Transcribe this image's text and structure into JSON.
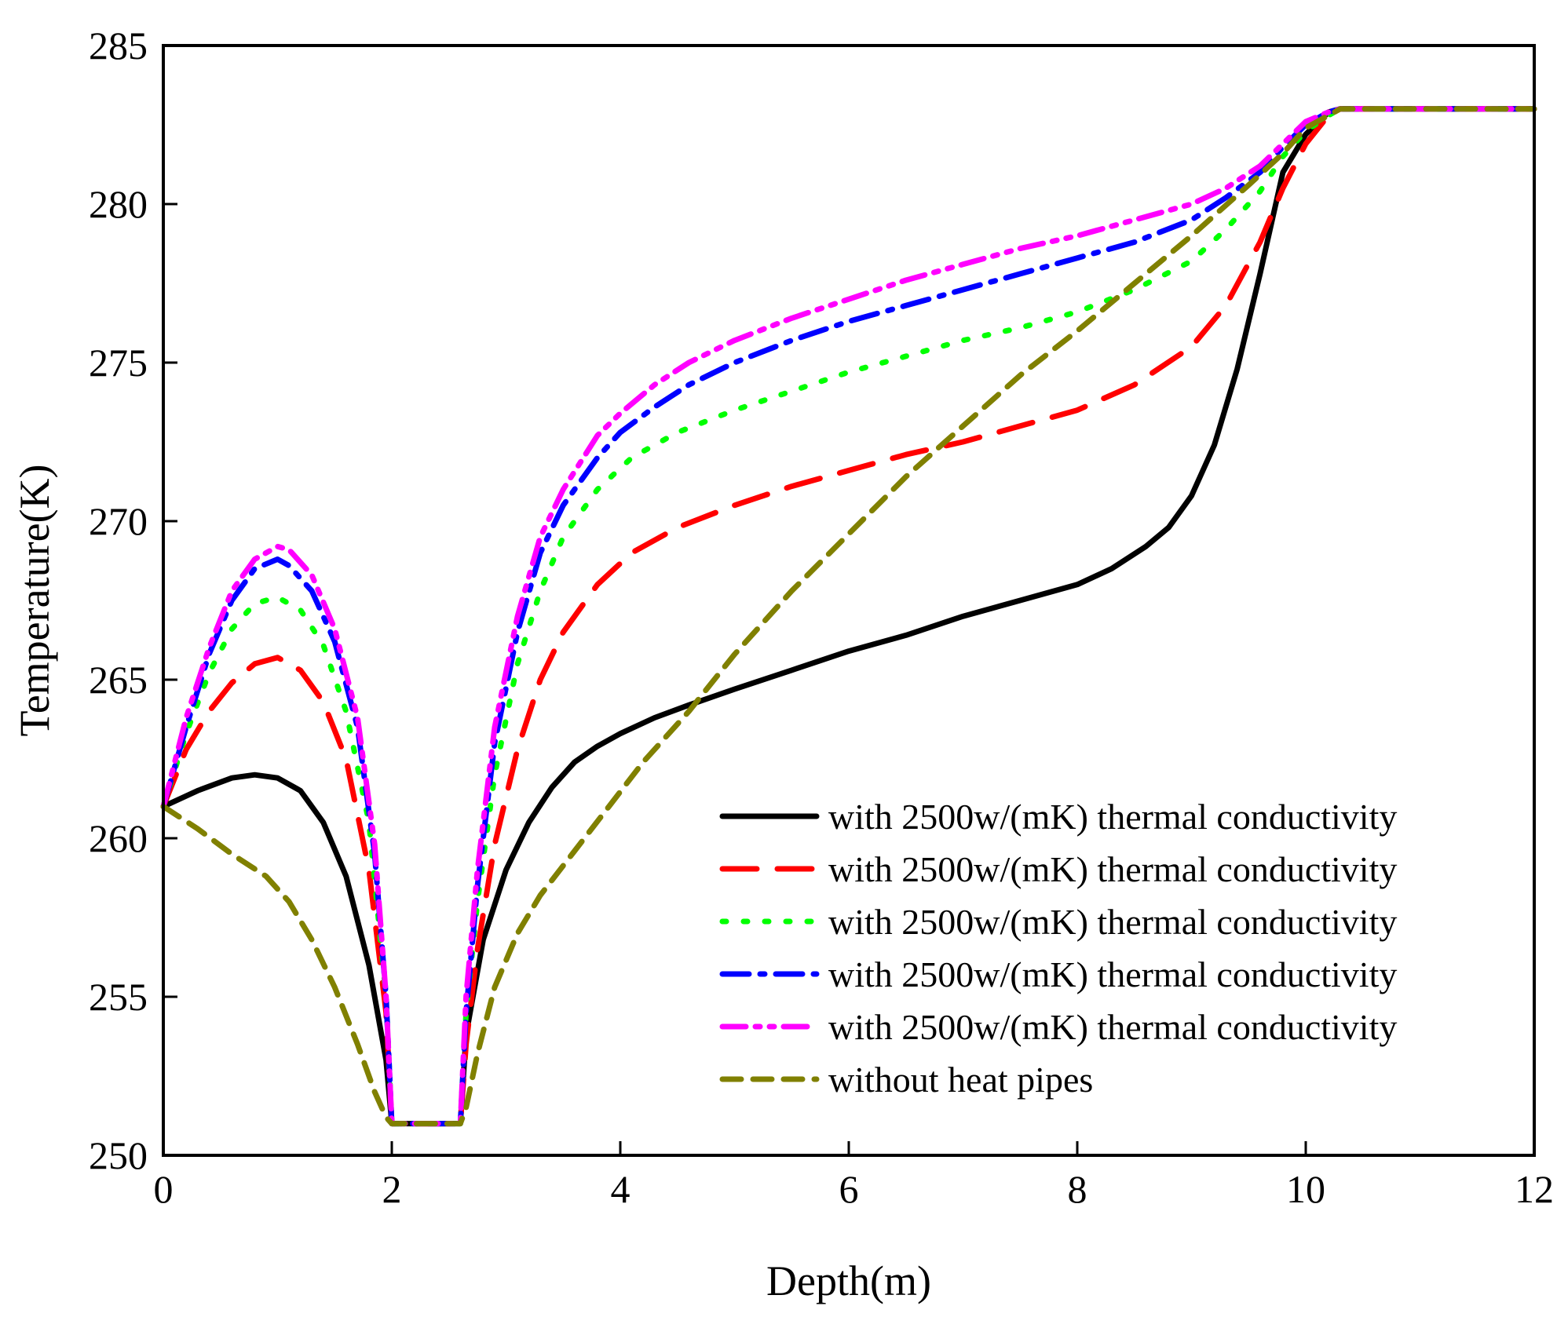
{
  "chart_data": {
    "type": "line",
    "title": "",
    "xlabel": "Depth(m)",
    "ylabel": "Temperature(K)",
    "xlim": [
      0,
      12
    ],
    "ylim": [
      250,
      285
    ],
    "xticks": [
      0,
      2,
      4,
      6,
      8,
      10,
      12
    ],
    "yticks": [
      250,
      255,
      260,
      265,
      270,
      275,
      280,
      285
    ],
    "grid": false,
    "legend_position": "bottom-right",
    "series": [
      {
        "name": "with 2500w/(mK) thermal conductivity",
        "color": "#000000",
        "dash": "solid",
        "x": [
          0,
          0.3,
          0.6,
          0.8,
          1.0,
          1.2,
          1.4,
          1.6,
          1.8,
          1.95,
          2.0,
          2.6,
          2.65,
          2.8,
          3.0,
          3.2,
          3.4,
          3.6,
          3.8,
          4.0,
          4.3,
          4.6,
          5.0,
          5.5,
          6.0,
          6.5,
          7.0,
          7.5,
          8.0,
          8.3,
          8.6,
          8.8,
          9.0,
          9.2,
          9.4,
          9.6,
          9.8,
          10.0,
          10.2,
          10.3,
          12.0
        ],
        "y": [
          261.0,
          261.5,
          261.9,
          262.0,
          261.9,
          261.5,
          260.5,
          258.8,
          256.0,
          253.0,
          251.0,
          251.0,
          253.8,
          256.8,
          259.0,
          260.5,
          261.6,
          262.4,
          262.9,
          263.3,
          263.8,
          264.2,
          264.7,
          265.3,
          265.9,
          266.4,
          267.0,
          267.5,
          268.0,
          268.5,
          269.2,
          269.8,
          270.8,
          272.4,
          274.8,
          277.8,
          281.0,
          282.2,
          282.9,
          283.0,
          283.0
        ]
      },
      {
        "name": "with 2500w/(mK) thermal conductivity",
        "color": "#ff0000",
        "dash": "long-dash",
        "x": [
          0,
          0.2,
          0.4,
          0.6,
          0.8,
          1.0,
          1.2,
          1.4,
          1.6,
          1.8,
          1.95,
          2.0,
          2.6,
          2.65,
          2.75,
          2.9,
          3.1,
          3.3,
          3.5,
          3.8,
          4.1,
          4.5,
          5.0,
          5.5,
          6.0,
          6.5,
          7.0,
          7.5,
          8.0,
          8.5,
          9.0,
          9.3,
          9.6,
          9.8,
          10.0,
          10.2,
          10.3,
          12.0
        ],
        "y": [
          261.0,
          262.8,
          264.0,
          264.9,
          265.5,
          265.7,
          265.3,
          264.3,
          262.5,
          259.0,
          254.5,
          251.0,
          251.0,
          253.5,
          256.5,
          259.8,
          262.8,
          265.0,
          266.5,
          268.0,
          269.0,
          269.8,
          270.5,
          271.1,
          271.6,
          272.1,
          272.5,
          273.0,
          273.5,
          274.3,
          275.5,
          276.8,
          278.8,
          280.5,
          281.9,
          282.8,
          283.0,
          283.0
        ]
      },
      {
        "name": "with 2500w/(mK) thermal conductivity",
        "color": "#00ff00",
        "dash": "dotted",
        "x": [
          0,
          0.2,
          0.4,
          0.6,
          0.8,
          1.0,
          1.2,
          1.4,
          1.6,
          1.8,
          1.95,
          2.0,
          2.6,
          2.65,
          2.75,
          2.9,
          3.1,
          3.3,
          3.5,
          3.8,
          4.1,
          4.5,
          5.0,
          5.5,
          6.0,
          6.5,
          7.0,
          7.5,
          8.0,
          8.5,
          9.0,
          9.3,
          9.6,
          9.8,
          10.0,
          10.2,
          10.3,
          12.0
        ],
        "y": [
          261.0,
          263.3,
          265.2,
          266.6,
          267.4,
          267.6,
          267.2,
          266.1,
          264.0,
          260.5,
          255.0,
          251.0,
          251.0,
          254.5,
          258.0,
          262.0,
          265.5,
          267.8,
          269.5,
          271.0,
          272.0,
          272.8,
          273.5,
          274.1,
          274.7,
          275.2,
          275.7,
          276.1,
          276.6,
          277.3,
          278.2,
          279.2,
          280.4,
          281.5,
          282.3,
          282.8,
          283.0,
          283.0
        ]
      },
      {
        "name": "with 2500w/(mK) thermal conductivity",
        "color": "#0000ff",
        "dash": "dash-dot",
        "x": [
          0,
          0.2,
          0.4,
          0.6,
          0.8,
          1.0,
          1.1,
          1.3,
          1.5,
          1.7,
          1.85,
          1.95,
          2.0,
          2.6,
          2.65,
          2.75,
          2.9,
          3.1,
          3.3,
          3.5,
          3.8,
          4.0,
          4.3,
          4.6,
          5.0,
          5.5,
          6.0,
          6.5,
          7.0,
          7.5,
          8.0,
          8.5,
          9.0,
          9.3,
          9.6,
          9.8,
          10.0,
          10.2,
          10.3,
          12.0
        ],
        "y": [
          261.0,
          263.5,
          265.8,
          267.5,
          268.5,
          268.8,
          268.6,
          267.8,
          266.2,
          263.5,
          259.5,
          255.0,
          251.0,
          251.0,
          254.5,
          258.5,
          263.0,
          266.5,
          269.0,
          270.5,
          272.0,
          272.8,
          273.6,
          274.3,
          275.0,
          275.7,
          276.3,
          276.8,
          277.3,
          277.8,
          278.3,
          278.8,
          279.5,
          280.2,
          281.0,
          281.8,
          282.5,
          282.9,
          283.0,
          283.0
        ]
      },
      {
        "name": "with 2500w/(mK) thermal conductivity",
        "color": "#ff00ff",
        "dash": "dash-dot-dot",
        "x": [
          0,
          0.2,
          0.4,
          0.6,
          0.8,
          1.0,
          1.1,
          1.3,
          1.5,
          1.7,
          1.85,
          1.95,
          2.0,
          2.6,
          2.65,
          2.75,
          2.9,
          3.1,
          3.3,
          3.5,
          3.8,
          4.0,
          4.3,
          4.6,
          5.0,
          5.5,
          6.0,
          6.5,
          7.0,
          7.5,
          8.0,
          8.5,
          9.0,
          9.3,
          9.6,
          9.8,
          10.0,
          10.2,
          10.3,
          12.0
        ],
        "y": [
          261.0,
          263.8,
          266.0,
          267.8,
          268.8,
          269.2,
          269.1,
          268.3,
          266.6,
          263.8,
          259.8,
          255.0,
          251.0,
          251.0,
          255.0,
          259.0,
          263.5,
          267.0,
          269.5,
          271.0,
          272.7,
          273.4,
          274.3,
          275.0,
          275.7,
          276.4,
          277.0,
          277.6,
          278.1,
          278.6,
          279.0,
          279.5,
          280.0,
          280.5,
          281.2,
          281.9,
          282.6,
          282.9,
          283.0,
          283.0
        ]
      },
      {
        "name": "without heat pipes",
        "color": "#808000",
        "dash": "short-dash",
        "x": [
          0,
          0.3,
          0.6,
          0.9,
          1.1,
          1.3,
          1.5,
          1.7,
          1.85,
          1.95,
          2.0,
          2.6,
          2.65,
          2.75,
          2.9,
          3.1,
          3.3,
          3.6,
          3.9,
          4.2,
          4.6,
          5.0,
          5.5,
          6.0,
          6.5,
          7.0,
          7.5,
          8.0,
          8.5,
          9.0,
          9.5,
          9.8,
          10.0,
          10.2,
          10.3,
          12.0
        ],
        "y": [
          261.0,
          260.3,
          259.5,
          258.8,
          258.0,
          256.8,
          255.3,
          253.5,
          252.0,
          251.2,
          251.0,
          251.0,
          251.5,
          253.2,
          255.3,
          257.0,
          258.2,
          259.6,
          261.0,
          262.4,
          264.0,
          265.8,
          267.8,
          269.6,
          271.4,
          273.0,
          274.6,
          276.0,
          277.5,
          279.0,
          280.6,
          281.6,
          282.4,
          282.8,
          283.0,
          283.0
        ]
      }
    ],
    "x_tick_labels": [
      "0",
      "2",
      "4",
      "6",
      "8",
      "10",
      "12"
    ],
    "y_tick_labels": [
      "250",
      "255",
      "260",
      "265",
      "270",
      "275",
      "280",
      "285"
    ]
  }
}
